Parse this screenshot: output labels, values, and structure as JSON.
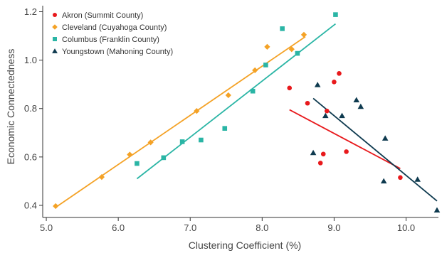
{
  "chart_data": {
    "type": "scatter",
    "xlabel": "Clustering Coefficient (%)",
    "ylabel": "Economic Connectedness",
    "xlim": [
      4.95,
      10.45
    ],
    "ylim": [
      0.35,
      1.225
    ],
    "x_ticks": [
      5.0,
      6.0,
      7.0,
      8.0,
      9.0,
      10.0
    ],
    "x_tick_labels": [
      "5.0",
      "6.0",
      "7.0",
      "8.0",
      "9.0",
      "10.0"
    ],
    "y_ticks": [
      0.4,
      0.6,
      0.8,
      1.0,
      1.2
    ],
    "y_tick_labels": [
      "0.4",
      "0.6",
      "0.8",
      "1.0",
      "1.2"
    ],
    "grid": false,
    "legend_position": "top-left",
    "series": [
      {
        "name": "Akron (Summit County)",
        "color": "#e8191c",
        "marker": "circle",
        "points": [
          [
            8.38,
            0.885
          ],
          [
            8.63,
            0.822
          ],
          [
            8.81,
            0.575
          ],
          [
            8.85,
            0.612
          ],
          [
            8.9,
            0.79
          ],
          [
            9.0,
            0.91
          ],
          [
            9.07,
            0.945
          ],
          [
            9.17,
            0.622
          ],
          [
            9.92,
            0.515
          ]
        ],
        "trend": [
          [
            8.38,
            0.795
          ],
          [
            9.92,
            0.552
          ]
        ]
      },
      {
        "name": "Cleveland (Cuyahoga County)",
        "color": "#f4a226",
        "marker": "diamond",
        "points": [
          [
            5.13,
            0.397
          ],
          [
            5.77,
            0.517
          ],
          [
            6.16,
            0.61
          ],
          [
            6.45,
            0.66
          ],
          [
            7.09,
            0.79
          ],
          [
            7.53,
            0.855
          ],
          [
            7.9,
            0.958
          ],
          [
            8.07,
            1.055
          ],
          [
            8.41,
            1.045
          ],
          [
            8.58,
            1.105
          ]
        ],
        "trend": [
          [
            5.13,
            0.392
          ],
          [
            8.6,
            1.097
          ]
        ]
      },
      {
        "name": "Columbus (Franklin County)",
        "color": "#2ab5a5",
        "marker": "square",
        "points": [
          [
            6.26,
            0.573
          ],
          [
            6.63,
            0.597
          ],
          [
            6.89,
            0.663
          ],
          [
            7.15,
            0.67
          ],
          [
            7.48,
            0.718
          ],
          [
            7.87,
            0.872
          ],
          [
            8.05,
            0.98
          ],
          [
            8.28,
            1.13
          ],
          [
            8.49,
            1.028
          ],
          [
            9.02,
            1.188
          ]
        ],
        "trend": [
          [
            6.26,
            0.51
          ],
          [
            9.02,
            1.15
          ]
        ]
      },
      {
        "name": "Youngstown (Mahoning County)",
        "color": "#0e3a4f",
        "marker": "triangle",
        "points": [
          [
            8.71,
            0.617
          ],
          [
            8.77,
            0.898
          ],
          [
            8.88,
            0.77
          ],
          [
            9.11,
            0.77
          ],
          [
            9.31,
            0.835
          ],
          [
            9.37,
            0.808
          ],
          [
            9.69,
            0.5
          ],
          [
            9.71,
            0.677
          ],
          [
            10.16,
            0.507
          ],
          [
            10.43,
            0.38
          ]
        ],
        "trend": [
          [
            8.71,
            0.842
          ],
          [
            10.43,
            0.418
          ]
        ]
      }
    ]
  }
}
